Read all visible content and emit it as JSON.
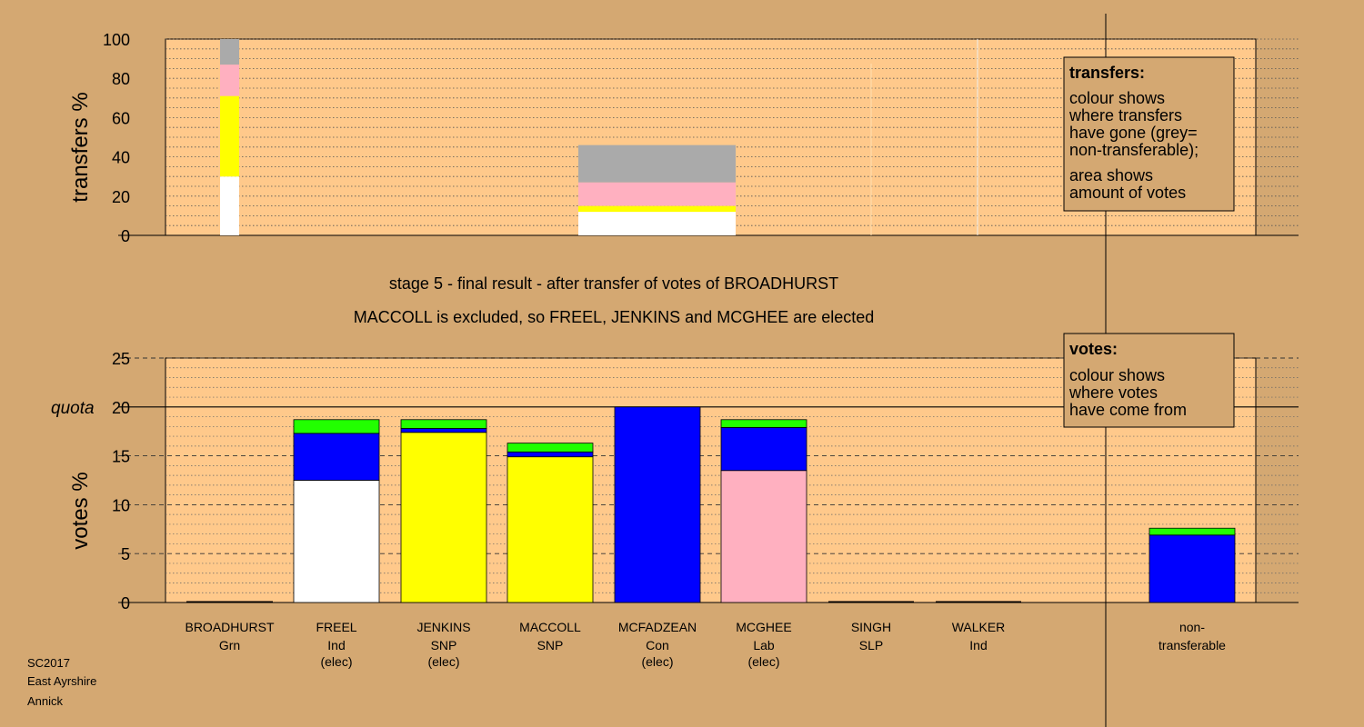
{
  "colors": {
    "background": "#d4a872",
    "plot_bg": "#ffc98b",
    "grey": "#aaaaaa",
    "pink": "#ffb0c0",
    "yellow": "#ffff00",
    "white": "#ffffff",
    "blue": "#0000ff",
    "green": "#22ff00"
  },
  "headline": {
    "line1": "stage 5 - final result - after transfer of votes of BROADHURST",
    "line2": "MACCOLL is excluded, so FREEL, JENKINS and MCGHEE are elected"
  },
  "legend_transfers": {
    "title": "transfers:",
    "lines": [
      "colour shows",
      "where transfers",
      "have gone (grey=",
      "non-transferable);",
      "area shows",
      "amount of votes"
    ]
  },
  "legend_votes": {
    "title": "votes:",
    "lines": [
      "colour shows",
      "where votes",
      "have come from"
    ]
  },
  "footer": [
    "SC2017",
    "East Ayrshire",
    "Annick"
  ],
  "chart_data": [
    {
      "type": "bar",
      "ylabel": "transfers %",
      "ylim": [
        0,
        100
      ],
      "yticks": [
        0,
        20,
        40,
        60,
        80,
        100
      ],
      "bars": [
        {
          "candidate": "BROADHURST",
          "segments": [
            {
              "color": "white",
              "value": 30
            },
            {
              "color": "yellow",
              "value": 41
            },
            {
              "color": "pink",
              "value": 16
            },
            {
              "color": "grey",
              "value": 13
            }
          ]
        },
        {
          "candidate": "MCFADZEAN",
          "segments": [
            {
              "color": "white",
              "value": 12
            },
            {
              "color": "yellow",
              "value": 3
            },
            {
              "color": "pink",
              "value": 12
            },
            {
              "color": "grey",
              "value": 19
            }
          ]
        }
      ]
    },
    {
      "type": "bar",
      "ylabel": "votes %",
      "ylim": [
        0,
        25
      ],
      "yticks": [
        0,
        5,
        10,
        15,
        20,
        25
      ],
      "quota": 20,
      "quota_label": "quota",
      "categories": [
        {
          "name": "BROADHURST",
          "party": "Grn",
          "status": ""
        },
        {
          "name": "FREEL",
          "party": "Ind",
          "status": "(elec)"
        },
        {
          "name": "JENKINS",
          "party": "SNP",
          "status": "(elec)"
        },
        {
          "name": "MACCOLL",
          "party": "SNP",
          "status": ""
        },
        {
          "name": "MCFADZEAN",
          "party": "Con",
          "status": "(elec)"
        },
        {
          "name": "MCGHEE",
          "party": "Lab",
          "status": "(elec)"
        },
        {
          "name": "SINGH",
          "party": "SLP",
          "status": ""
        },
        {
          "name": "WALKER",
          "party": "Ind",
          "status": ""
        },
        {
          "name": "non-",
          "party": "transferable",
          "status": ""
        }
      ],
      "stacks": [
        [],
        [
          {
            "color": "white",
            "value": 12.5
          },
          {
            "color": "blue",
            "value": 4.8
          },
          {
            "color": "green",
            "value": 1.4
          }
        ],
        [
          {
            "color": "yellow",
            "value": 17.4
          },
          {
            "color": "blue",
            "value": 0.4
          },
          {
            "color": "green",
            "value": 0.9
          }
        ],
        [
          {
            "color": "yellow",
            "value": 14.9
          },
          {
            "color": "blue",
            "value": 0.5
          },
          {
            "color": "green",
            "value": 0.9
          }
        ],
        [
          {
            "color": "blue",
            "value": 20.0
          }
        ],
        [
          {
            "color": "pink",
            "value": 13.5
          },
          {
            "color": "blue",
            "value": 4.4
          },
          {
            "color": "green",
            "value": 0.8
          }
        ],
        [],
        [],
        [
          {
            "color": "blue",
            "value": 6.9
          },
          {
            "color": "green",
            "value": 0.7
          }
        ]
      ]
    }
  ]
}
